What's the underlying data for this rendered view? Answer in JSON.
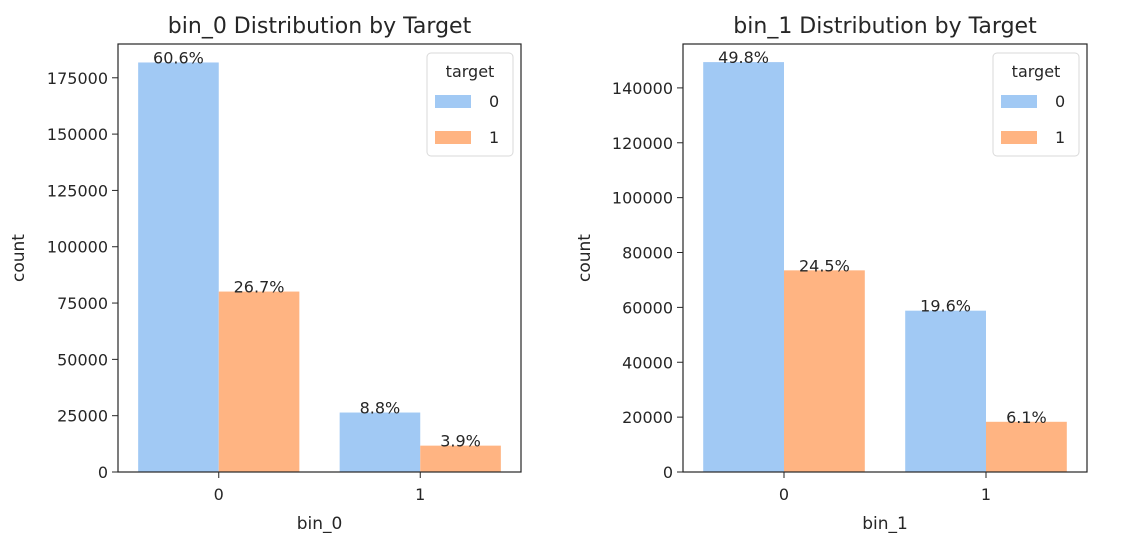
{
  "colors": {
    "series_0": "#a1c9f4",
    "series_1": "#ffb482"
  },
  "chart_data": [
    {
      "type": "bar",
      "title": "bin_0 Distribution by Target",
      "xlabel": "bin_0",
      "ylabel": "count",
      "categories": [
        "0",
        "1"
      ],
      "ylim": [
        0,
        190000
      ],
      "yticks": [
        0,
        25000,
        50000,
        75000,
        100000,
        125000,
        150000,
        175000
      ],
      "legend": {
        "title": "target",
        "position": "top-right"
      },
      "grid": false,
      "series": [
        {
          "name": "0",
          "values": [
            181800,
            26400
          ],
          "labels": [
            "60.6%",
            "8.8%"
          ]
        },
        {
          "name": "1",
          "values": [
            80100,
            11700
          ],
          "labels": [
            "26.7%",
            "3.9%"
          ]
        }
      ]
    },
    {
      "type": "bar",
      "title": "bin_1 Distribution by Target",
      "xlabel": "bin_1",
      "ylabel": "count",
      "categories": [
        "0",
        "1"
      ],
      "ylim": [
        0,
        156000
      ],
      "yticks": [
        0,
        20000,
        40000,
        60000,
        80000,
        100000,
        120000,
        140000
      ],
      "legend": {
        "title": "target",
        "position": "top-right"
      },
      "grid": false,
      "series": [
        {
          "name": "0",
          "values": [
            149400,
            58800
          ],
          "labels": [
            "49.8%",
            "19.6%"
          ]
        },
        {
          "name": "1",
          "values": [
            73500,
            18300
          ],
          "labels": [
            "24.5%",
            "6.1%"
          ]
        }
      ]
    }
  ]
}
